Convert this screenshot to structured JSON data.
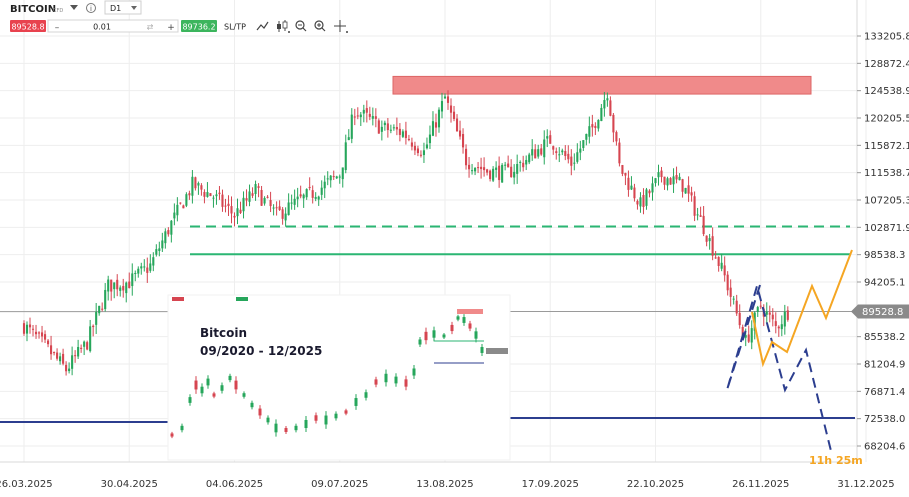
{
  "toolbar": {
    "symbol": "BITCOIN",
    "symbol_tag": "CFD",
    "info_icon": "info-icon",
    "timeframe": "D1",
    "sell_price": "89528.8",
    "minus_label": "–",
    "volume": "0.01",
    "plus_label": "+",
    "buy_price": "89736.2",
    "sltp_label": "SL/TP",
    "icons": [
      "line-chart-icon",
      "candles-icon",
      "zoom-out-icon",
      "zoom-in-icon",
      "crosshair-icon"
    ],
    "colors": {
      "sell": "#e8424e",
      "buy": "#3cb55d"
    }
  },
  "inset": {
    "title": "Bitcoin",
    "period": "09/2020 - 12/2025"
  },
  "countdown": "11h 25m",
  "colors": {
    "bull": "#26a65b",
    "bear": "#d64550",
    "resistance_zone": "#f08a8a",
    "support_dashed": "#2bb673",
    "support_solid": "#2bb673",
    "low_line": "#2c3e8f",
    "scenario_bear": "#2c3e8f",
    "scenario_bull": "#f5a623",
    "price_badge": "#8a8a8a"
  },
  "chart_data": {
    "type": "candlestick",
    "instrument": "BITCOIN",
    "timeframe": "D1",
    "ylim": [
      68204.6,
      135000
    ],
    "y_ticks": [
      133205.8,
      128872.4,
      124538.9,
      120205.5,
      115872.1,
      111538.7,
      107205.3,
      102871.9,
      98538.3,
      94205.1,
      89528.8,
      85538.2,
      81204.9,
      76871.4,
      72538.0,
      68204.6
    ],
    "x_ticks": [
      "26.03.2025",
      "30.04.2025",
      "04.06.2025",
      "09.07.2025",
      "13.08.2025",
      "17.09.2025",
      "22.10.2025",
      "26.11.2025",
      "31.12.2025"
    ],
    "current_price": 89528.8,
    "levels": {
      "resistance_zone": [
        124000,
        126800
      ],
      "dashed_support": 103000,
      "solid_support": 98600,
      "left_line": 89500,
      "bottom_line": 76500
    },
    "series_anchor_closes": [
      [
        "26.03.2025",
        87300
      ],
      [
        "02.04.2025",
        84000
      ],
      [
        "09.04.2025",
        80300
      ],
      [
        "16.04.2025",
        84600
      ],
      [
        "23.04.2025",
        93600
      ],
      [
        "30.04.2025",
        94200
      ],
      [
        "07.05.2025",
        96800
      ],
      [
        "14.05.2025",
        103500
      ],
      [
        "21.05.2025",
        109600
      ],
      [
        "28.05.2025",
        107800
      ],
      [
        "04.06.2025",
        104800
      ],
      [
        "11.06.2025",
        108700
      ],
      [
        "18.06.2025",
        104800
      ],
      [
        "25.06.2025",
        106900
      ],
      [
        "02.07.2025",
        108900
      ],
      [
        "09.07.2025",
        111300
      ],
      [
        "14.07.2025",
        121500
      ],
      [
        "23.07.2025",
        118600
      ],
      [
        "30.07.2025",
        117900
      ],
      [
        "06.08.2025",
        114800
      ],
      [
        "13.08.2025",
        123400
      ],
      [
        "20.08.2025",
        113500
      ],
      [
        "27.08.2025",
        111800
      ],
      [
        "03.09.2025",
        111500
      ],
      [
        "10.09.2025",
        114000
      ],
      [
        "17.09.2025",
        116700
      ],
      [
        "24.09.2025",
        113000
      ],
      [
        "01.10.2025",
        118600
      ],
      [
        "06.10.2025",
        124500
      ],
      [
        "10.10.2025",
        112500
      ],
      [
        "17.10.2025",
        106400
      ],
      [
        "24.10.2025",
        111100
      ],
      [
        "31.10.2025",
        109600
      ],
      [
        "07.11.2025",
        103000
      ],
      [
        "14.11.2025",
        95000
      ],
      [
        "21.11.2025",
        84700
      ],
      [
        "26.11.2025",
        90500
      ],
      [
        "01.12.2025",
        87000
      ],
      [
        "05.12.2025",
        89500
      ]
    ],
    "scenario_bear": [
      [
        "05.12.2025",
        89500
      ],
      [
        "28.11.2025",
        82000
      ],
      [
        "08.12.2025",
        93500
      ],
      [
        "14.12.2025",
        81500
      ],
      [
        "20.12.2025",
        87500
      ],
      [
        "26.12.2025",
        71800
      ]
    ],
    "scenario_bull": [
      [
        "05.12.2025",
        89500
      ],
      [
        "10.12.2025",
        85000
      ],
      [
        "16.12.2025",
        87500
      ],
      [
        "22.12.2025",
        93500
      ],
      [
        "26.12.2025",
        91000
      ],
      [
        "01.01.2026",
        99000
      ]
    ]
  }
}
